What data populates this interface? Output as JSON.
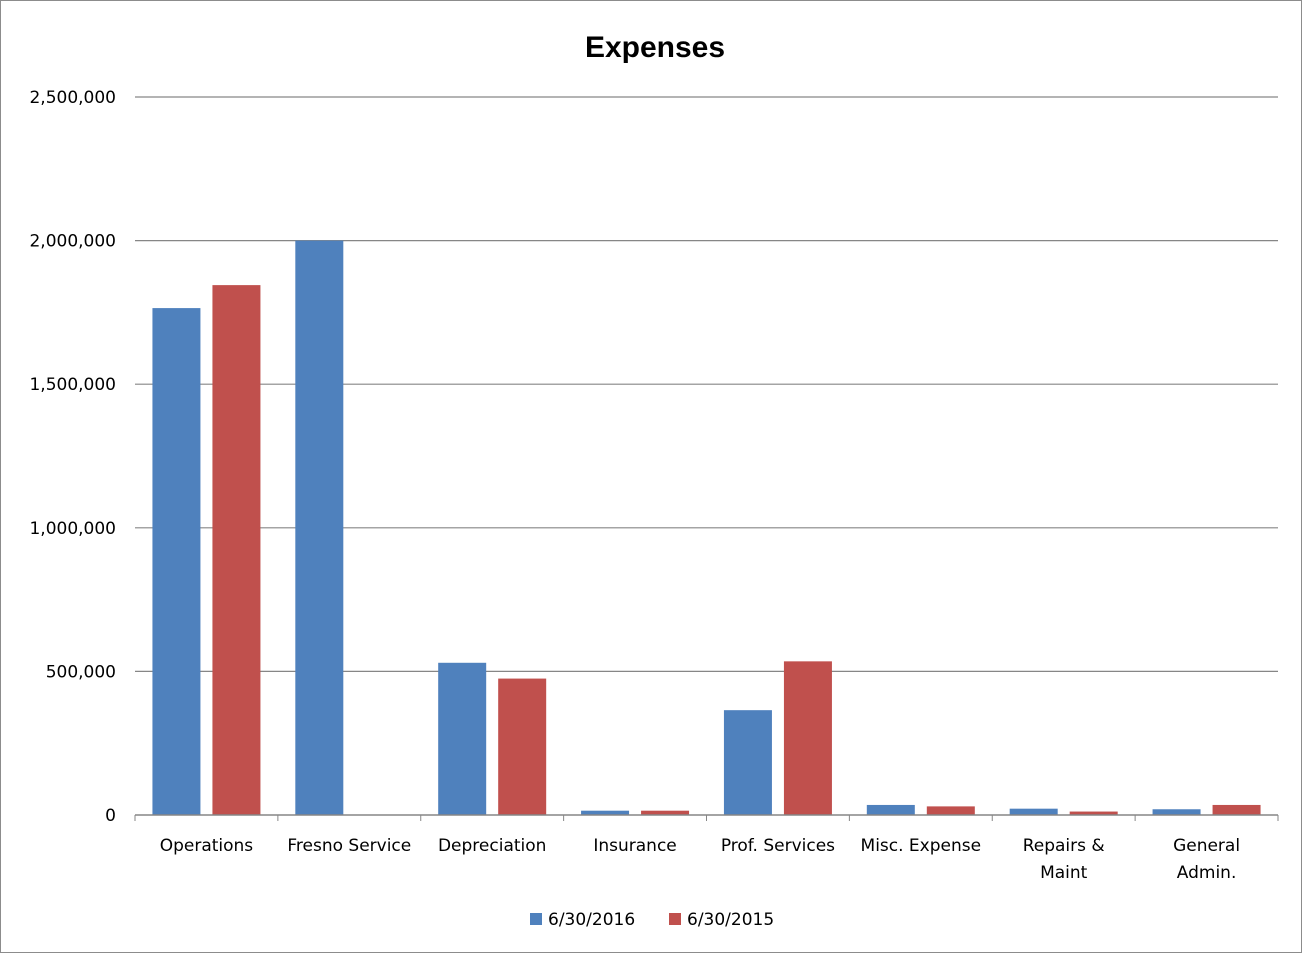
{
  "chart_data": {
    "type": "bar",
    "title": "Expenses",
    "xlabel": "",
    "ylabel": "",
    "ylim": [
      0,
      2500000
    ],
    "yticks": [
      0,
      500000,
      1000000,
      1500000,
      2000000,
      2500000
    ],
    "ytick_labels": [
      "0",
      "500,000",
      "1,000,000",
      "1,500,000",
      "2,000,000",
      "2,500,000"
    ],
    "grid": true,
    "legend_position": "bottom",
    "categories": [
      [
        "Operations"
      ],
      [
        "Fresno Service"
      ],
      [
        "Depreciation"
      ],
      [
        "Insurance"
      ],
      [
        "Prof. Services"
      ],
      [
        "Misc. Expense"
      ],
      [
        "Repairs &",
        "Maint"
      ],
      [
        "General",
        "Admin."
      ]
    ],
    "series": [
      {
        "name": "6/30/2016",
        "color": "#4F81BD",
        "values": [
          1765000,
          2000000,
          530000,
          15000,
          365000,
          35000,
          22000,
          20000
        ]
      },
      {
        "name": "6/30/2015",
        "color": "#C0504D",
        "values": [
          1845000,
          0,
          475000,
          15000,
          535000,
          30000,
          12000,
          35000
        ]
      }
    ]
  }
}
